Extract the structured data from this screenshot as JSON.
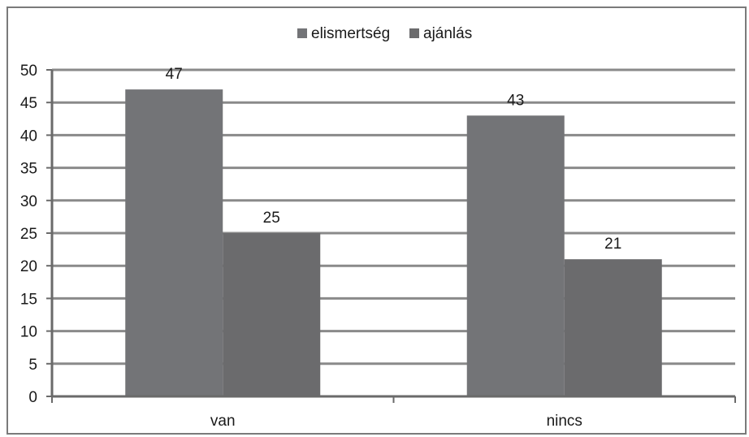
{
  "chart_data": {
    "type": "bar",
    "categories": [
      "van",
      "nincs"
    ],
    "series": [
      {
        "name": "elismertség",
        "values": [
          47,
          43
        ],
        "color": "#737477"
      },
      {
        "name": "ajánlás",
        "values": [
          25,
          21
        ],
        "color": "#6b6b6d"
      }
    ],
    "data_labels": [
      [
        "47",
        "43"
      ],
      [
        "25",
        "21"
      ]
    ],
    "ylim": [
      0,
      50
    ],
    "yticks": [
      0,
      5,
      10,
      15,
      20,
      25,
      30,
      35,
      40,
      45,
      50
    ],
    "grid": true,
    "legend": "top-center",
    "colors": {
      "frame": "#7a7a7a",
      "grid": "#8a8a8a",
      "axis": "#6a6a6a"
    }
  }
}
